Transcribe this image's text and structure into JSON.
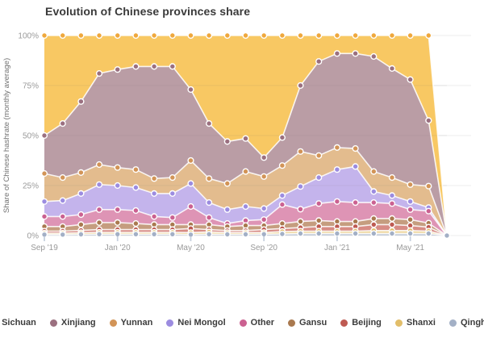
{
  "title": "Evolution of Chinese provinces share",
  "y_axis": {
    "label": "Share of Chinese hashrate (monthly average)",
    "ticks": [
      "100%",
      "75%",
      "50%",
      "25%",
      "0%"
    ]
  },
  "x_axis": {
    "ticks": [
      "Sep '19",
      "Jan '20",
      "May '20",
      "Sep '20",
      "Jan '21",
      "May '21"
    ]
  },
  "chart_data": {
    "type": "area",
    "stacked": true,
    "title": "Evolution of Chinese provinces share",
    "ylabel": "Share of Chinese hashrate (monthly average)",
    "ylim": [
      0,
      100
    ],
    "grid": true,
    "legend_position": "bottom",
    "x": [
      "Sep '19",
      "Oct '19",
      "Nov '19",
      "Dec '19",
      "Jan '20",
      "Feb '20",
      "Mar '20",
      "Apr '20",
      "May '20",
      "Jun '20",
      "Jul '20",
      "Aug '20",
      "Sep '20",
      "Oct '20",
      "Nov '20",
      "Dec '20",
      "Jan '21",
      "Feb '21",
      "Mar '21",
      "Apr '21",
      "May '21",
      "Jun '21",
      "Jul '21"
    ],
    "x_tick_indices": [
      0,
      4,
      8,
      12,
      16,
      20
    ],
    "stack_note": "series listed from top of stack to bottom; values are % share per month and sum to 100 (all provinces drop to 0 at the final month)",
    "series": [
      {
        "name": "Sichuan",
        "marker_color": "#EFA83D",
        "fill_color": "#F8C863",
        "values": [
          50,
          44,
          33,
          19,
          17,
          15.5,
          15.5,
          15.5,
          27,
          44,
          53,
          51.5,
          61,
          51,
          25,
          13,
          9,
          9,
          10.5,
          16.5,
          22,
          42.5,
          0
        ]
      },
      {
        "name": "Xinjiang",
        "marker_color": "#9B7080",
        "fill_color": "#BA9DA5",
        "values": [
          19,
          27,
          35.5,
          45.5,
          49,
          51.5,
          56,
          55.5,
          35.5,
          27.5,
          21,
          16.5,
          9.5,
          14,
          33,
          47,
          47,
          47.5,
          57.5,
          54.5,
          52.5,
          32.8,
          0
        ]
      },
      {
        "name": "Yunnan",
        "marker_color": "#D29457",
        "fill_color": "#E3BC8E",
        "values": [
          14,
          11.5,
          10.5,
          10,
          9,
          9,
          7.5,
          8,
          11.5,
          12,
          13,
          17.5,
          16,
          15,
          17.5,
          11,
          11,
          9,
          10,
          9,
          8.5,
          10.7,
          0
        ]
      },
      {
        "name": "Nei Mongol",
        "marker_color": "#9C8CE0",
        "fill_color": "#C4B4EC",
        "values": [
          7.5,
          8,
          10.5,
          12.5,
          12,
          11.5,
          11.5,
          12,
          11.5,
          7.5,
          7,
          7,
          5.5,
          4.5,
          11.3,
          13,
          16,
          18,
          5.5,
          4,
          4,
          1.8,
          0
        ]
      },
      {
        "name": "Other",
        "marker_color": "#CB6191",
        "fill_color": "#DE94B5",
        "values": [
          5,
          5,
          5,
          6.5,
          6.5,
          6.5,
          4,
          3.5,
          9,
          3.5,
          1.5,
          2.5,
          3,
          9.5,
          6.2,
          8.5,
          10,
          9.5,
          8,
          7.5,
          5,
          6,
          0
        ]
      },
      {
        "name": "Gansu",
        "marker_color": "#A9794F",
        "fill_color": "#C59D7F",
        "values": [
          2.3,
          2.3,
          2.9,
          3.5,
          3.5,
          3,
          2.5,
          2.5,
          2,
          2.5,
          2,
          2.5,
          2,
          2.5,
          3,
          3,
          2.5,
          2.5,
          3,
          3,
          3,
          2,
          0
        ]
      },
      {
        "name": "Beijing",
        "marker_color": "#BE5A52",
        "fill_color": "#D78C85",
        "values": [
          1,
          1,
          1.2,
          1.4,
          1.4,
          1.4,
          1.4,
          1.4,
          2,
          1.2,
          1,
          1,
          1.5,
          1.5,
          1.8,
          2.3,
          2.3,
          2.3,
          3,
          3,
          2.5,
          2,
          0
        ]
      },
      {
        "name": "Shanxi",
        "marker_color": "#E2BE6A",
        "fill_color": "#EFD9A4",
        "values": [
          0.7,
          0.7,
          0.8,
          0.9,
          0.9,
          0.9,
          0.9,
          0.9,
          1,
          1.1,
          0.9,
          0.9,
          0.8,
          1.2,
          1.2,
          1.2,
          1.2,
          1.2,
          1.5,
          1.5,
          1.5,
          1.2,
          0
        ]
      },
      {
        "name": "Qinghai",
        "marker_color": "#A3B0C6",
        "fill_color": "#C6CEDB",
        "values": [
          0.5,
          0.5,
          0.6,
          0.7,
          0.7,
          0.7,
          0.7,
          0.7,
          0.5,
          0.7,
          0.6,
          0.6,
          0.7,
          0.8,
          1,
          1,
          1,
          1,
          1,
          1,
          1,
          1,
          0
        ]
      }
    ]
  },
  "legend": {
    "items": [
      {
        "label": "Sichuan",
        "color": "#EFA83D"
      },
      {
        "label": "Xinjiang",
        "color": "#9B7080"
      },
      {
        "label": "Yunnan",
        "color": "#D29457"
      },
      {
        "label": "Nei Mongol",
        "color": "#9C8CE0"
      },
      {
        "label": "Other",
        "color": "#CB6191"
      },
      {
        "label": "Gansu",
        "color": "#A9794F"
      },
      {
        "label": "Beijing",
        "color": "#BE5A52"
      },
      {
        "label": "Shanxi",
        "color": "#E2BE6A"
      },
      {
        "label": "Qinghai",
        "color": "#A3B0C6"
      }
    ]
  }
}
